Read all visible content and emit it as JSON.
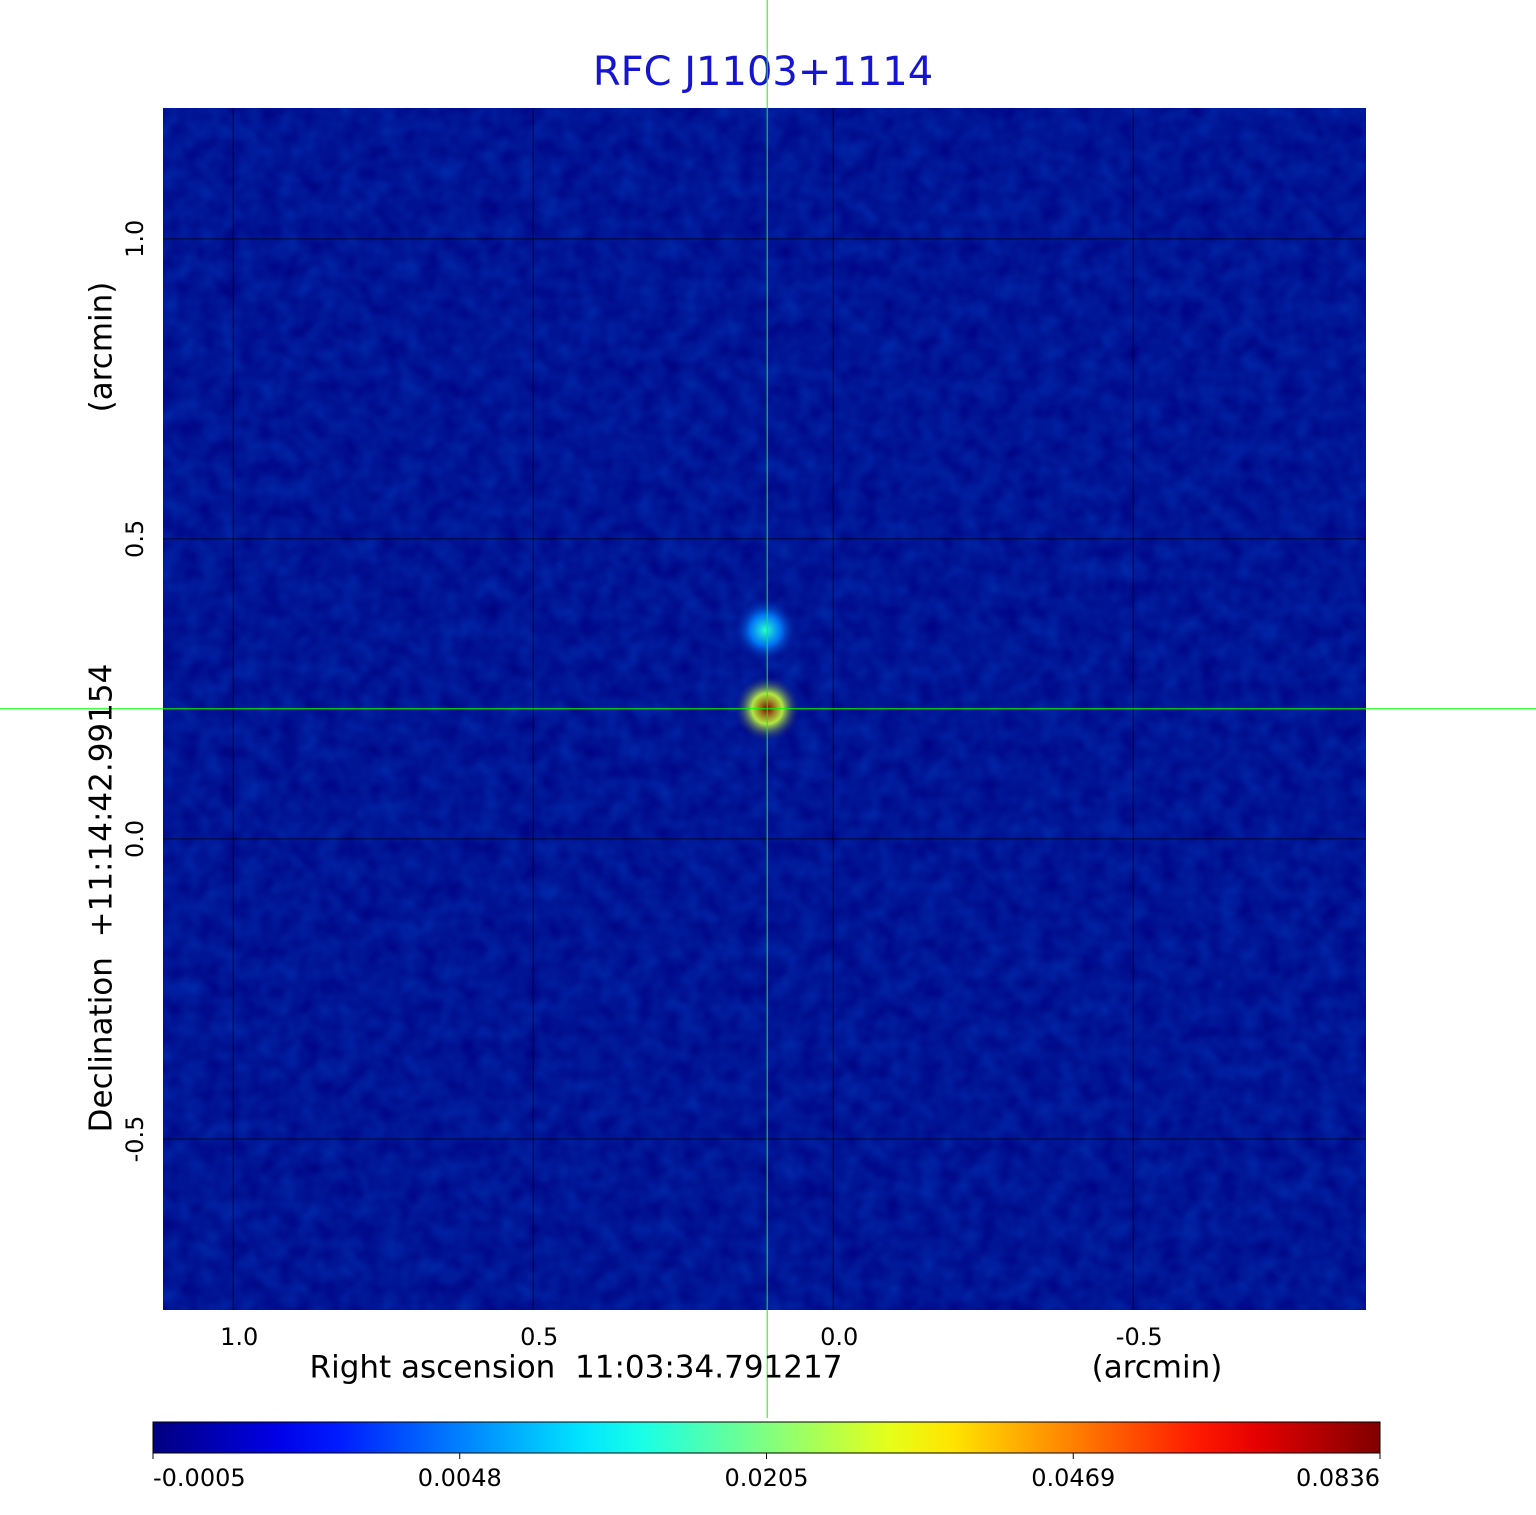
{
  "chart_data": {
    "type": "image",
    "title": "RFC J1103+1114",
    "x_label": "Right ascension  11:03:34.791217",
    "x_unit": "(arcmin)",
    "y_label": "Declination  +11:14:42.99154",
    "y_unit": "(arcmin)",
    "xlim": [
      1.117,
      -0.888
    ],
    "ylim": [
      -0.785,
      1.218
    ],
    "xticks": [
      {
        "value": 1,
        "label": "1.0"
      },
      0.5,
      {
        "value": 0,
        "label": "0.0"
      },
      -0.5
    ],
    "yticks": [
      -0.5,
      {
        "value": 0,
        "label": "0.0"
      },
      0.5,
      {
        "value": 1,
        "label": "1.0"
      }
    ],
    "grid": true,
    "crosshair": {
      "x": 0.11,
      "y": 0.217,
      "color": "#00ff00"
    },
    "sources": [
      {
        "x": 0.11,
        "y": 0.217,
        "value": 0.0836
      },
      {
        "x": 0.113,
        "y": 0.348,
        "value": 0.015
      }
    ],
    "colormap": "jet",
    "colorbar_ticks": [
      -0.0005,
      0.0048,
      0.0205,
      0.0469,
      0.0836
    ],
    "background_value": -0.0005
  }
}
